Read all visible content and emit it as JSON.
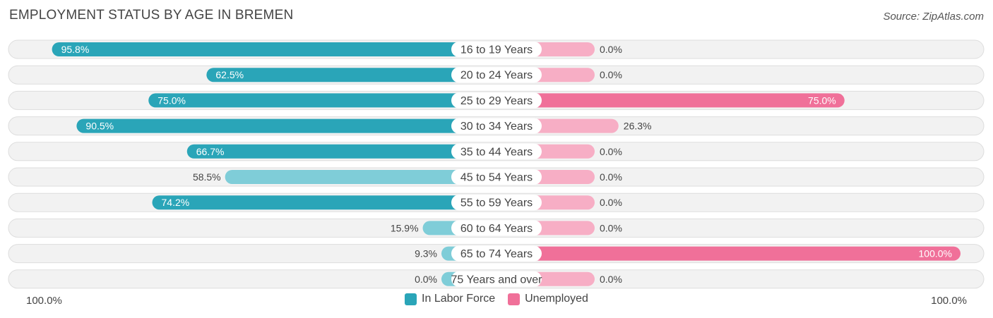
{
  "title": "EMPLOYMENT STATUS BY AGE IN BREMEN",
  "source": "Source: ZipAtlas.com",
  "axis": {
    "left_label": "100.0%",
    "right_label": "100.0%"
  },
  "legend": [
    {
      "label": "In Labor Force",
      "color": "#2aa5b8"
    },
    {
      "label": "Unemployed",
      "color": "#f07099"
    }
  ],
  "chart_data": {
    "type": "bar",
    "title": "EMPLOYMENT STATUS BY AGE IN BREMEN",
    "categories": [
      "16 to 19 Years",
      "20 to 24 Years",
      "25 to 29 Years",
      "30 to 34 Years",
      "35 to 44 Years",
      "45 to 54 Years",
      "55 to 59 Years",
      "60 to 64 Years",
      "65 to 74 Years",
      "75 Years and over"
    ],
    "series": [
      {
        "name": "In Labor Force",
        "values": [
          95.8,
          62.5,
          75.0,
          90.5,
          66.7,
          58.5,
          74.2,
          15.9,
          9.3,
          0.0
        ],
        "labels": [
          "95.8%",
          "62.5%",
          "75.0%",
          "90.5%",
          "66.7%",
          "58.5%",
          "74.2%",
          "15.9%",
          "9.3%",
          "0.0%"
        ]
      },
      {
        "name": "Unemployed",
        "values": [
          0.0,
          0.0,
          75.0,
          26.3,
          0.0,
          0.0,
          0.0,
          0.0,
          100.0,
          0.0
        ],
        "labels": [
          "0.0%",
          "0.0%",
          "75.0%",
          "26.3%",
          "0.0%",
          "0.0%",
          "0.0%",
          "0.0%",
          "100.0%",
          "0.0%"
        ]
      }
    ],
    "xlim": [
      -100,
      100
    ],
    "colors": {
      "labor_strong": "#2aa5b8",
      "labor_light": "#7fcdd8",
      "unemployed_strong": "#f07099",
      "unemployed_light": "#f7aec5",
      "row_bg": "#f2f2f2",
      "row_border": "#dddddd"
    }
  }
}
